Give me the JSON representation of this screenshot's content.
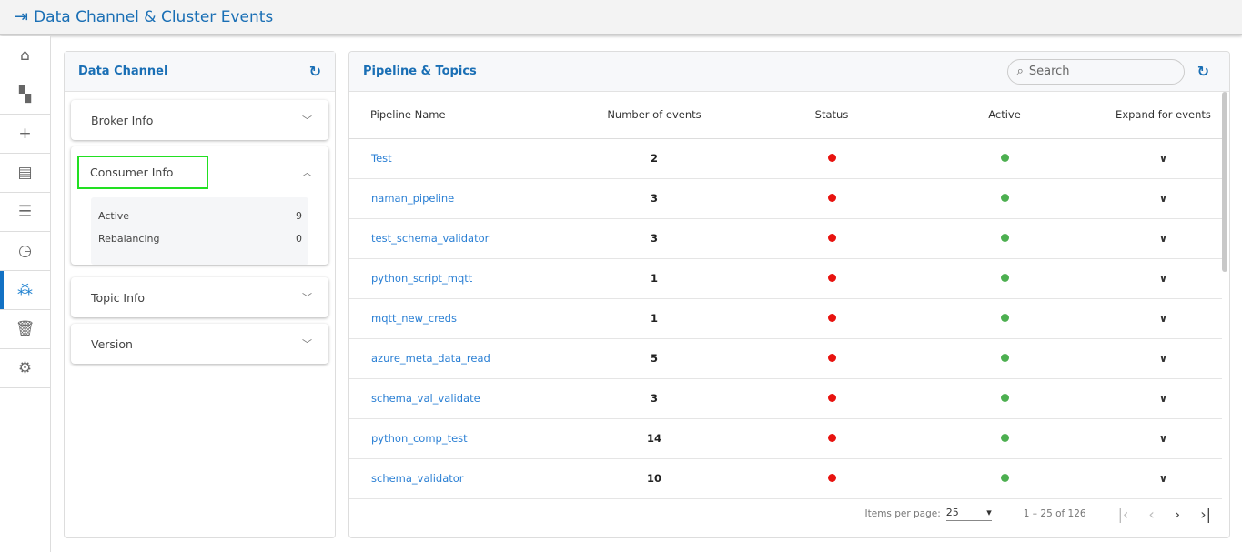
{
  "header": {
    "title": "Data Channel & Cluster Events",
    "icon": "menu-indent-icon"
  },
  "sidebar": {
    "items": [
      {
        "name": "home",
        "icon": "⌂"
      },
      {
        "name": "dashboard",
        "icon": "▚"
      },
      {
        "name": "create",
        "icon": "+"
      },
      {
        "name": "library",
        "icon": "▤"
      },
      {
        "name": "list",
        "icon": "☰"
      },
      {
        "name": "history",
        "icon": "◷"
      },
      {
        "name": "data-channel",
        "icon": "⁂",
        "active": true
      },
      {
        "name": "trash",
        "icon": "🗑"
      },
      {
        "name": "settings",
        "icon": "⚙"
      }
    ]
  },
  "left": {
    "title": "Data Channel",
    "broker": "Broker Info",
    "consumer": "Consumer Info",
    "consumer_rows": [
      {
        "label": "Active",
        "value": "9"
      },
      {
        "label": "Rebalancing",
        "value": "0"
      }
    ],
    "topic": "Topic Info",
    "version": "Version"
  },
  "right": {
    "title": "Pipeline & Topics",
    "search_placeholder": "Search",
    "columns": [
      "Pipeline Name",
      "Number of events",
      "Status",
      "Active",
      "Expand for events"
    ],
    "rows": [
      {
        "name": "Test",
        "events": "2"
      },
      {
        "name": "naman_pipeline",
        "events": "3"
      },
      {
        "name": "test_schema_validator",
        "events": "3"
      },
      {
        "name": "python_script_mqtt",
        "events": "1"
      },
      {
        "name": "mqtt_new_creds",
        "events": "1"
      },
      {
        "name": "azure_meta_data_read",
        "events": "5"
      },
      {
        "name": "schema_val_validate",
        "events": "3"
      },
      {
        "name": "python_comp_test",
        "events": "14"
      },
      {
        "name": "schema_validator",
        "events": "10"
      }
    ],
    "status_color": "#e8130f",
    "active_color": "#4caf50",
    "pagination": {
      "label": "Items per page:",
      "per_page": "25",
      "range": "1 – 25 of 126"
    }
  }
}
